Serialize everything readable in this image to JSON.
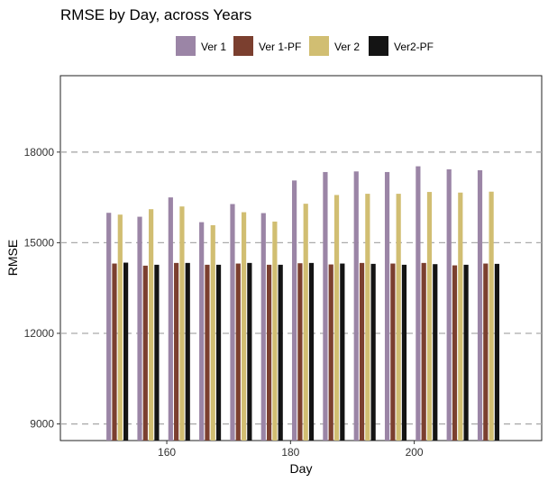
{
  "chart_data": {
    "type": "bar",
    "title": "RMSE by Day, across Years",
    "xlabel": "Day",
    "ylabel": "RMSE",
    "x": [
      152,
      157,
      162,
      167,
      172,
      177,
      182,
      187,
      192,
      197,
      202,
      207,
      212
    ],
    "x_ticks": [
      160,
      180,
      200
    ],
    "y_ticks": [
      9000,
      12000,
      15000,
      18000
    ],
    "xlim": [
      142.8,
      220.6
    ],
    "ylim": [
      8450,
      20530
    ],
    "grid": "horizontal-dashed",
    "legend_position": "top",
    "series": [
      {
        "name": "Ver 1",
        "color": "#9b85a6",
        "values": [
          15990,
          15860,
          16500,
          15680,
          16280,
          15980,
          17060,
          17340,
          17360,
          17340,
          17530,
          17430,
          17400
        ]
      },
      {
        "name": "Ver 1-PF",
        "color": "#7b3f2f",
        "values": [
          14310,
          14240,
          14330,
          14270,
          14310,
          14270,
          14320,
          14280,
          14330,
          14310,
          14330,
          14250,
          14310
        ]
      },
      {
        "name": "Ver 2",
        "color": "#d1be72",
        "values": [
          15930,
          16110,
          16200,
          15580,
          16010,
          15700,
          16290,
          16580,
          16620,
          16620,
          16680,
          16660,
          16690
        ]
      },
      {
        "name": "Ver2-PF",
        "color": "#141414",
        "values": [
          14340,
          14270,
          14330,
          14270,
          14330,
          14270,
          14330,
          14310,
          14300,
          14270,
          14290,
          14270,
          14300
        ]
      }
    ]
  }
}
